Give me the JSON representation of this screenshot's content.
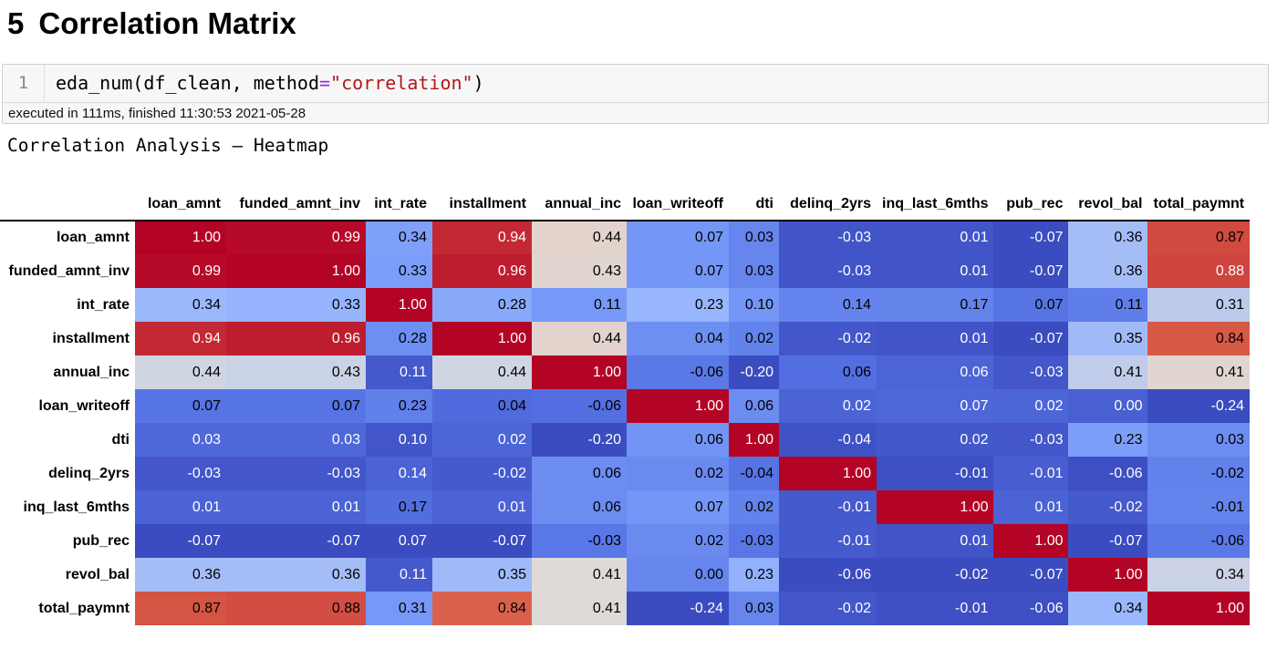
{
  "heading": {
    "number": "5",
    "text": "Correlation Matrix"
  },
  "code_cell": {
    "line_number": "1",
    "code_prefix": "eda_num(df_clean, method",
    "code_operator": "=",
    "code_string": "\"correlation\"",
    "code_suffix": ")",
    "execution_info": "executed in 111ms, finished 11:30:53 2021-05-28"
  },
  "output": {
    "title": "Correlation Analysis – Heatmap"
  },
  "colors": {
    "diverging_scale": "coolwarm",
    "cold_end": "#3b4cc0",
    "neutral": "#dddcdc",
    "hot_end": "#b40426",
    "text_on_dark": "#ffffff",
    "text_on_light": "#000000"
  },
  "chart_data": {
    "type": "heatmap",
    "title": "",
    "columns": [
      "loan_amnt",
      "funded_amnt_inv",
      "int_rate",
      "installment",
      "annual_inc",
      "loan_writeoff",
      "dti",
      "delinq_2yrs",
      "inq_last_6mths",
      "pub_rec",
      "revol_bal",
      "total_paymnt"
    ],
    "rows": [
      "loan_amnt",
      "funded_amnt_inv",
      "int_rate",
      "installment",
      "annual_inc",
      "loan_writeoff",
      "dti",
      "delinq_2yrs",
      "inq_last_6mths",
      "pub_rec",
      "revol_bal",
      "total_paymnt"
    ],
    "values": [
      [
        "1.00",
        "0.99",
        "0.34",
        "0.94",
        "0.44",
        "0.07",
        "0.03",
        "-0.03",
        "0.01",
        "-0.07",
        "0.36",
        "0.87"
      ],
      [
        "0.99",
        "1.00",
        "0.33",
        "0.96",
        "0.43",
        "0.07",
        "0.03",
        "-0.03",
        "0.01",
        "-0.07",
        "0.36",
        "0.88"
      ],
      [
        "0.34",
        "0.33",
        "1.00",
        "0.28",
        "0.11",
        "0.23",
        "0.10",
        "0.14",
        "0.17",
        "0.07",
        "0.11",
        "0.31"
      ],
      [
        "0.94",
        "0.96",
        "0.28",
        "1.00",
        "0.44",
        "0.04",
        "0.02",
        "-0.02",
        "0.01",
        "-0.07",
        "0.35",
        "0.84"
      ],
      [
        "0.44",
        "0.43",
        "0.11",
        "0.44",
        "1.00",
        "-0.06",
        "-0.20",
        "0.06",
        "0.06",
        "-0.03",
        "0.41",
        "0.41"
      ],
      [
        "0.07",
        "0.07",
        "0.23",
        "0.04",
        "-0.06",
        "1.00",
        "0.06",
        "0.02",
        "0.07",
        "0.02",
        "0.00",
        "-0.24"
      ],
      [
        "0.03",
        "0.03",
        "0.10",
        "0.02",
        "-0.20",
        "0.06",
        "1.00",
        "-0.04",
        "0.02",
        "-0.03",
        "0.23",
        "0.03"
      ],
      [
        "-0.03",
        "-0.03",
        "0.14",
        "-0.02",
        "0.06",
        "0.02",
        "-0.04",
        "1.00",
        "-0.01",
        "-0.01",
        "-0.06",
        "-0.02"
      ],
      [
        "0.01",
        "0.01",
        "0.17",
        "0.01",
        "0.06",
        "0.07",
        "0.02",
        "-0.01",
        "1.00",
        "0.01",
        "-0.02",
        "-0.01"
      ],
      [
        "-0.07",
        "-0.07",
        "0.07",
        "-0.07",
        "-0.03",
        "0.02",
        "-0.03",
        "-0.01",
        "0.01",
        "1.00",
        "-0.07",
        "-0.06"
      ],
      [
        "0.36",
        "0.36",
        "0.11",
        "0.35",
        "0.41",
        "0.00",
        "0.23",
        "-0.06",
        "-0.02",
        "-0.07",
        "1.00",
        "0.34"
      ],
      [
        "0.87",
        "0.88",
        "0.31",
        "0.84",
        "0.41",
        "-0.24",
        "0.03",
        "-0.02",
        "-0.01",
        "-0.06",
        "0.34",
        "1.00"
      ]
    ],
    "color_scale": "per-column (coolwarm)",
    "legend": "none",
    "grid": false
  }
}
